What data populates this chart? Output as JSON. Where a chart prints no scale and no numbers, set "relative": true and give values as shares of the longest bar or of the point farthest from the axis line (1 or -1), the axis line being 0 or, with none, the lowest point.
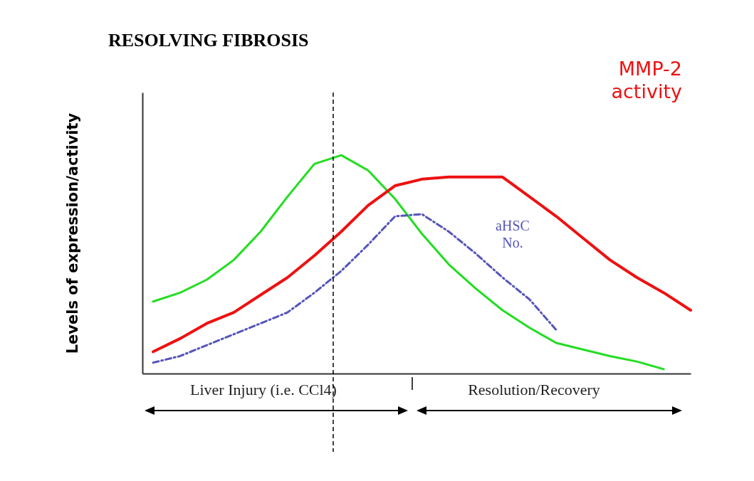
{
  "chart_data": {
    "type": "line",
    "title": "RESOLVING FIBROSIS",
    "ylabel": "Levels of expression/activity",
    "relative": true,
    "categories": [
      null,
      null,
      null,
      null,
      null,
      null,
      null,
      null,
      null,
      null,
      null,
      null,
      null,
      null,
      null,
      null,
      null,
      null,
      null,
      null,
      null
    ],
    "series": [
      {
        "color": "#22dd22",
        "line_style": "solid",
        "values": [
          0.33,
          0.37,
          0.43,
          0.52,
          0.65,
          0.81,
          0.96,
          1.0,
          0.93,
          0.8,
          0.64,
          0.5,
          0.39,
          0.29,
          0.21,
          0.14,
          0.11,
          0.08,
          0.055,
          0.02,
          null
        ]
      },
      {
        "name": "MMP-2 activity",
        "color": "#ee1111",
        "line_style": "solid",
        "values": [
          0.1,
          0.16,
          0.23,
          0.28,
          0.36,
          0.44,
          0.54,
          0.65,
          0.77,
          0.86,
          0.89,
          0.9,
          0.9,
          0.9,
          0.81,
          0.72,
          0.62,
          0.52,
          0.44,
          0.37,
          0.29
        ]
      },
      {
        "name": "aHSC No.",
        "color": "#5555bb",
        "line_style": "dashed",
        "values": [
          0.05,
          0.08,
          0.13,
          0.18,
          0.23,
          0.28,
          0.37,
          0.47,
          0.59,
          0.72,
          0.73,
          0.65,
          0.55,
          0.44,
          0.34,
          0.2,
          null,
          null,
          null,
          null,
          null
        ]
      }
    ],
    "annotations": [
      "Liver Injury (i.e. CCl4)",
      "Resolution/Recovery"
    ]
  }
}
